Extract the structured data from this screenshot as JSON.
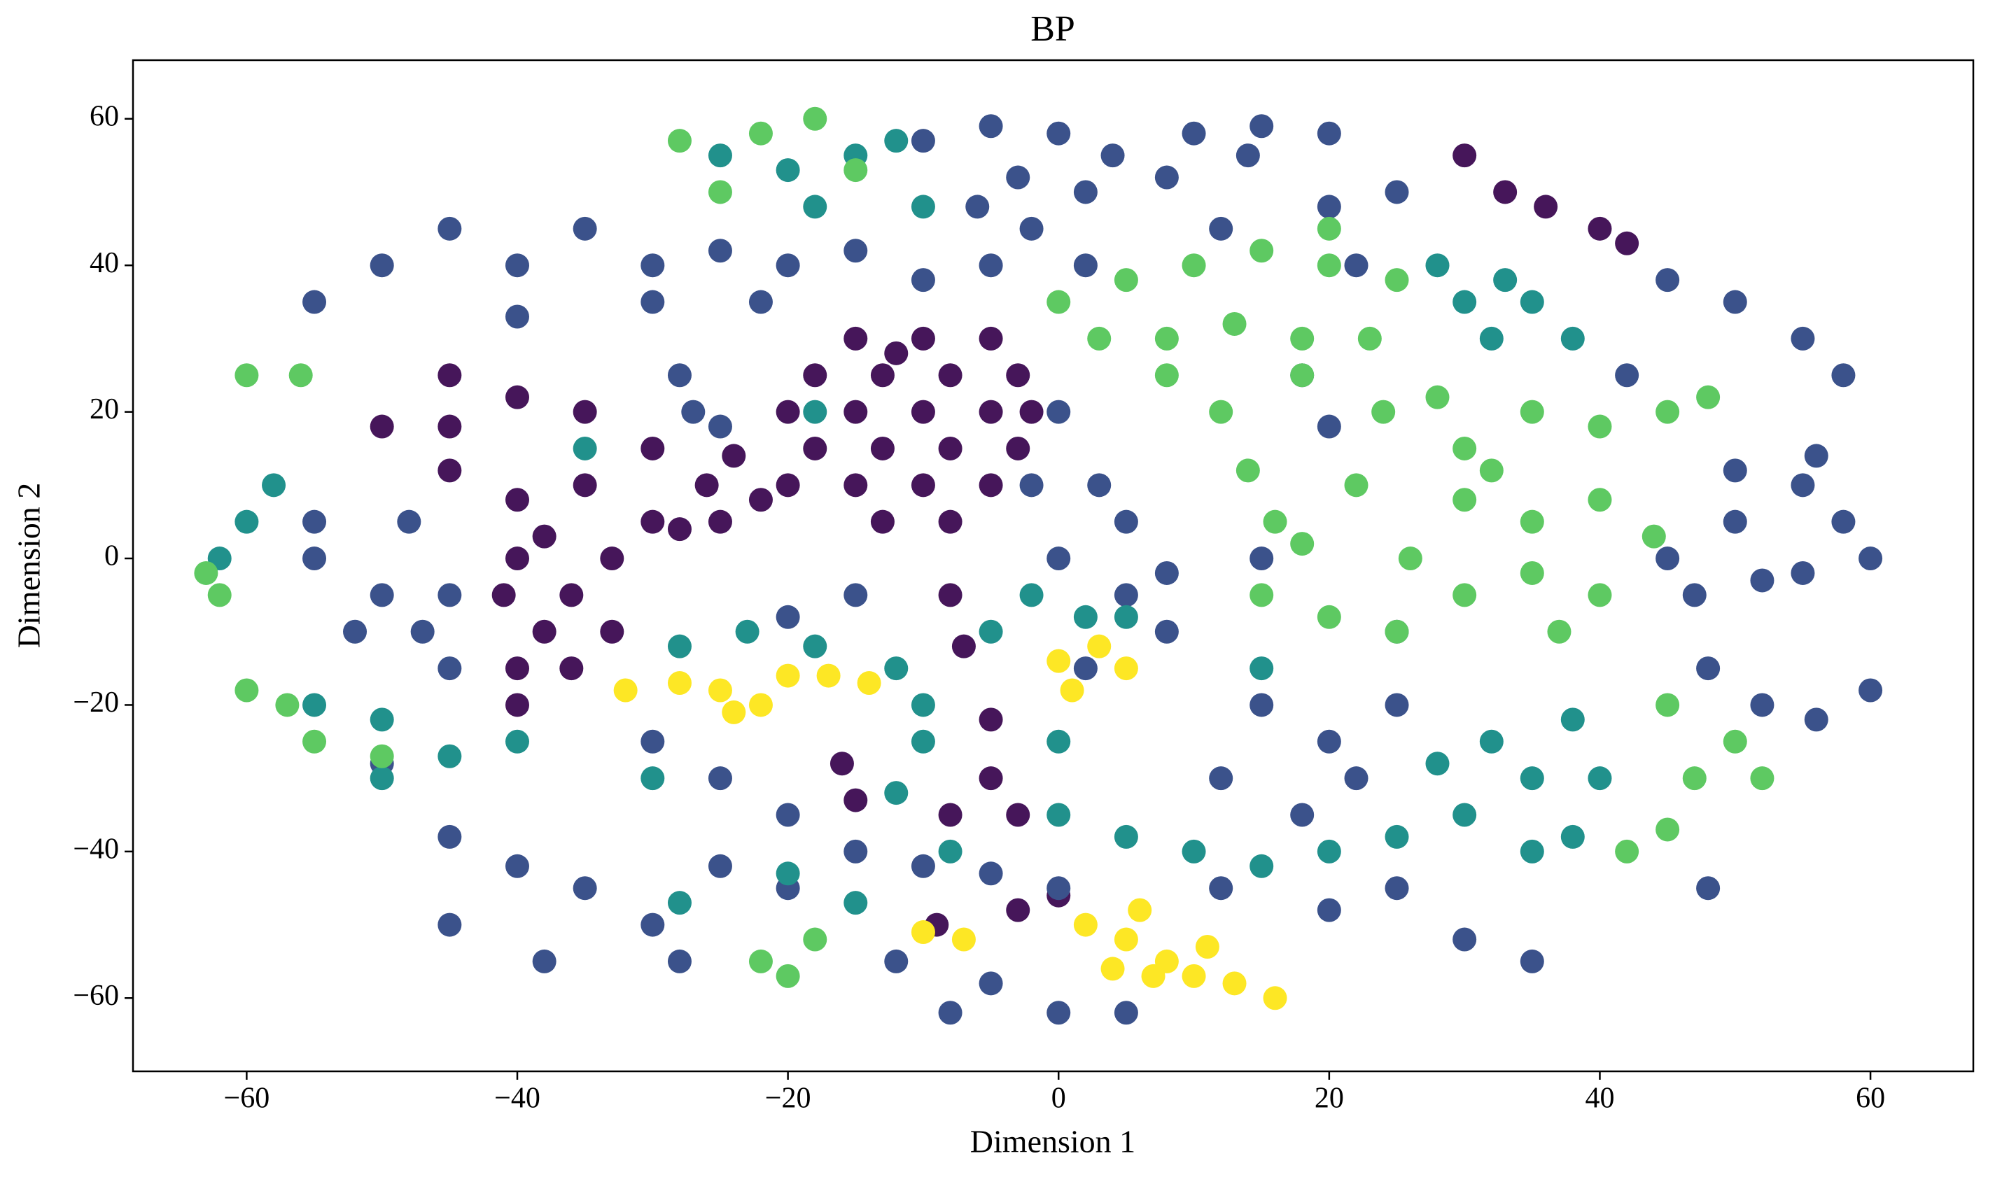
{
  "chart_data": {
    "type": "scatter",
    "title": "BP",
    "x_label": "Dimension 1",
    "y_label": "Dimension 2",
    "xlim": [
      -68.4,
      67.6
    ],
    "ylim": [
      -70,
      68
    ],
    "grid": false,
    "xticks": [
      {
        "value": -60,
        "label": "−60"
      },
      {
        "value": -40,
        "label": "−40"
      },
      {
        "value": -20,
        "label": "−20"
      },
      0,
      20,
      40,
      60
    ],
    "yticks": [
      {
        "value": -60,
        "label": "−60"
      },
      {
        "value": -40,
        "label": "−40"
      },
      {
        "value": -20,
        "label": "−20"
      },
      0,
      20,
      40,
      60
    ],
    "series": [
      {
        "color": "#46165a",
        "x": [
          -15,
          -10,
          -5,
          -18,
          -13,
          -8,
          -3,
          -20,
          -15,
          -10,
          -5,
          -2,
          -18,
          -13,
          -8,
          -3,
          -20,
          -15,
          -10,
          -5,
          -13,
          -8,
          -25,
          -30,
          -35,
          -40,
          -38,
          -33,
          -40,
          -36,
          -41,
          -38,
          -33,
          -40,
          -36,
          -40,
          -45,
          -40,
          -35,
          -50,
          -45,
          -30,
          -26,
          -22,
          30,
          33,
          36,
          40,
          42,
          -16,
          -15,
          -8,
          -7,
          -5,
          -5,
          -8,
          -3,
          -9,
          -3,
          0,
          -24,
          -28,
          -45,
          -12
        ],
        "y": [
          30,
          30,
          30,
          25,
          25,
          25,
          25,
          20,
          20,
          20,
          20,
          20,
          15,
          15,
          15,
          15,
          10,
          10,
          10,
          10,
          5,
          5,
          5,
          5,
          10,
          8,
          3,
          0,
          0,
          -5,
          -5,
          -10,
          -10,
          -15,
          -15,
          -20,
          25,
          22,
          20,
          18,
          18,
          15,
          10,
          8,
          55,
          50,
          48,
          45,
          43,
          -28,
          -33,
          -5,
          -12,
          -22,
          -30,
          -35,
          -35,
          -50,
          -48,
          -46,
          14,
          4,
          12,
          28
        ]
      },
      {
        "color": "#3b528b",
        "x": [
          -10,
          -5,
          0,
          4,
          -3,
          2,
          10,
          15,
          20,
          14,
          8,
          -6,
          -45,
          -40,
          -50,
          -35,
          -30,
          -25,
          -20,
          -15,
          -10,
          -5,
          -30,
          -22,
          -40,
          -55,
          -55,
          -50,
          -45,
          -52,
          -47,
          -55,
          -48,
          -45,
          -28,
          -27,
          -25,
          -45,
          -50,
          -40,
          -35,
          -45,
          -38,
          -30,
          -28,
          0,
          3,
          -2,
          5,
          0,
          5,
          8,
          2,
          8,
          -15,
          -20,
          -30,
          -25,
          -20,
          -15,
          -25,
          -20,
          -10,
          -5,
          0,
          -12,
          -5,
          0,
          5,
          -8,
          15,
          20,
          25,
          22,
          25,
          18,
          12,
          20,
          25,
          30,
          35,
          12,
          45,
          50,
          55,
          58,
          52,
          47,
          55,
          50,
          56,
          60,
          48,
          52,
          56,
          60,
          45,
          50,
          55,
          58,
          42,
          48,
          2,
          -2,
          12,
          20,
          25,
          22,
          18,
          20,
          15
        ],
        "y": [
          57,
          59,
          58,
          55,
          52,
          50,
          58,
          59,
          58,
          55,
          52,
          48,
          45,
          40,
          40,
          45,
          40,
          42,
          40,
          42,
          38,
          40,
          35,
          35,
          33,
          35,
          0,
          -5,
          -5,
          -10,
          -10,
          5,
          5,
          -15,
          25,
          20,
          18,
          -38,
          -28,
          -42,
          -45,
          -50,
          -55,
          -50,
          -55,
          20,
          10,
          10,
          5,
          0,
          -5,
          -2,
          -15,
          -10,
          -5,
          -8,
          -25,
          -30,
          -35,
          -40,
          -42,
          -45,
          -42,
          -43,
          -45,
          -55,
          -58,
          -62,
          -62,
          -62,
          -20,
          -25,
          -20,
          -30,
          -10,
          -35,
          -45,
          -48,
          -45,
          -52,
          -55,
          -30,
          0,
          5,
          10,
          5,
          -3,
          -5,
          -2,
          12,
          14,
          0,
          -15,
          -20,
          -22,
          -18,
          38,
          35,
          30,
          25,
          25,
          -45,
          40,
          45,
          45,
          48,
          50,
          40,
          25,
          18,
          0
        ]
      },
      {
        "color": "#21918c",
        "x": [
          -25,
          -20,
          -15,
          -12,
          -18,
          -10,
          28,
          30,
          32,
          35,
          38,
          33,
          -60,
          -62,
          -58,
          -55,
          -50,
          -45,
          -40,
          -50,
          -28,
          -23,
          -18,
          -12,
          -5,
          -2,
          2,
          5,
          -10,
          -12,
          -8,
          0,
          5,
          10,
          -20,
          -15,
          15,
          20,
          25,
          28,
          32,
          35,
          38,
          40,
          35,
          38,
          30,
          -28,
          -10,
          0,
          15,
          -35,
          -30,
          -18
        ],
        "y": [
          55,
          53,
          55,
          57,
          48,
          48,
          40,
          35,
          30,
          35,
          30,
          38,
          5,
          0,
          10,
          -20,
          -22,
          -27,
          -25,
          -30,
          -12,
          -10,
          -12,
          -15,
          -10,
          -5,
          -8,
          -8,
          -25,
          -32,
          -40,
          -35,
          -38,
          -40,
          -43,
          -47,
          -42,
          -40,
          -38,
          -28,
          -25,
          -30,
          -22,
          -30,
          -40,
          -38,
          -35,
          -47,
          -20,
          -25,
          -15,
          15,
          -30,
          20
        ]
      },
      {
        "color": "#5ec962",
        "x": [
          0,
          5,
          10,
          15,
          20,
          25,
          3,
          8,
          13,
          18,
          23,
          12,
          14,
          16,
          18,
          24,
          28,
          30,
          35,
          40,
          45,
          48,
          30,
          35,
          40,
          44,
          15,
          20,
          25,
          30,
          35,
          40,
          18,
          22,
          26,
          32,
          37,
          45,
          50,
          47,
          52,
          45,
          42,
          -28,
          -22,
          -18,
          -25,
          -15,
          -60,
          -56,
          -63,
          -62,
          -60,
          -57,
          -22,
          -18,
          -20,
          -55,
          -50,
          20,
          8
        ],
        "y": [
          35,
          38,
          40,
          42,
          40,
          38,
          30,
          30,
          32,
          30,
          30,
          20,
          12,
          5,
          25,
          20,
          22,
          15,
          20,
          18,
          20,
          22,
          8,
          5,
          8,
          3,
          -5,
          -8,
          -10,
          -5,
          -2,
          -5,
          2,
          10,
          0,
          12,
          -10,
          -20,
          -25,
          -30,
          -30,
          -37,
          -40,
          57,
          58,
          60,
          50,
          53,
          25,
          25,
          -2,
          -5,
          -18,
          -20,
          -55,
          -52,
          -57,
          -25,
          -27,
          45,
          25
        ]
      },
      {
        "color": "#fde725",
        "x": [
          -32,
          -28,
          -25,
          -22,
          -20,
          -24,
          -17,
          -14,
          0,
          3,
          5,
          1,
          2,
          5,
          8,
          10,
          13,
          16,
          6,
          11,
          -10,
          -7,
          7,
          4
        ],
        "y": [
          -18,
          -17,
          -18,
          -20,
          -16,
          -21,
          -16,
          -17,
          -14,
          -12,
          -15,
          -18,
          -50,
          -52,
          -55,
          -57,
          -58,
          -60,
          -48,
          -53,
          -51,
          -52,
          -57,
          -56
        ]
      }
    ]
  }
}
